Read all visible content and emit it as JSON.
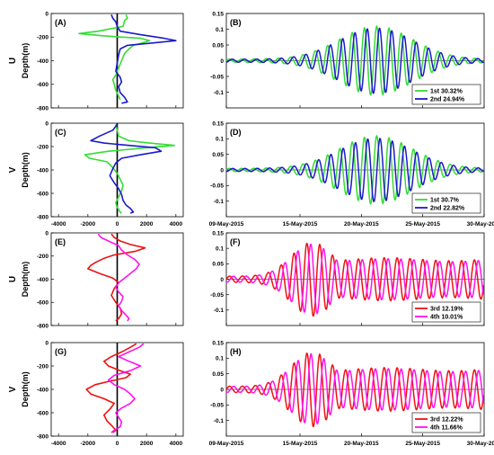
{
  "dates": [
    "09-May-2015",
    "15-May-2015",
    "20-May-2015",
    "25-May-2015",
    "30-May-2015"
  ],
  "colors": {
    "mode1": "#33dd33",
    "mode2": "#1a1acc",
    "mode3": "#ee1111",
    "mode4": "#ff11ee",
    "zero": "#000000"
  },
  "profile_x_ticks": [
    "-4000",
    "-2000",
    "0",
    "2000",
    "4000"
  ],
  "ts_y_ticks": [
    "0.15",
    "0.1",
    "0.05",
    "0",
    "-0.05",
    "-0.1"
  ],
  "chart_data": [
    {
      "type": "line",
      "panel": "(A)",
      "component": "U",
      "ylabel": "Depth(m)",
      "xlim": [
        -4500,
        4500
      ],
      "ylim": [
        -800,
        0
      ],
      "y_ticks": [
        "0",
        "-200",
        "-400",
        "-600",
        "-800"
      ],
      "series": [
        {
          "mode": "1st",
          "color": "#33dd33",
          "x": [
            600,
            700,
            500,
            400,
            -1300,
            -2600,
            -900,
            1600,
            2200,
            1700,
            1100,
            800,
            500,
            300,
            100,
            -100,
            -300,
            -200,
            -100,
            100,
            200
          ],
          "y": [
            -10,
            -40,
            -60,
            -110,
            -150,
            -170,
            -190,
            -210,
            -230,
            -250,
            -270,
            -300,
            -340,
            -400,
            -460,
            -520,
            -560,
            -600,
            -650,
            -700,
            -730
          ]
        },
        {
          "mode": "2nd",
          "color": "#1a1acc",
          "x": [
            -400,
            -300,
            -100,
            0,
            200,
            1600,
            3200,
            4000,
            2400,
            700,
            200,
            100,
            0,
            -100,
            200,
            300,
            100,
            200,
            500,
            700,
            300
          ],
          "y": [
            -10,
            -40,
            -70,
            -110,
            -150,
            -180,
            -210,
            -230,
            -250,
            -270,
            -300,
            -350,
            -420,
            -490,
            -540,
            -580,
            -620,
            -670,
            -710,
            -750,
            -760
          ]
        }
      ]
    },
    {
      "type": "line",
      "panel": "(B)",
      "component": "U",
      "x_start": "09-May-2015",
      "x_end": "30-May-2015",
      "ylim": [
        -0.15,
        0.15
      ],
      "legend": "bottom-right",
      "series": [
        {
          "mode": "1st",
          "name": "1st 30.32%",
          "color": "#33dd33",
          "period_days": 1.0,
          "phase": 0.0,
          "amp_scale": 1.0
        },
        {
          "mode": "2nd",
          "name": "2nd 24.94%",
          "color": "#1a1acc",
          "period_days": 1.0,
          "phase": 0.23,
          "amp_scale": 0.95
        }
      ]
    },
    {
      "type": "line",
      "panel": "(C)",
      "component": "V",
      "ylabel": "Depth(m)",
      "xlim": [
        -4500,
        4500
      ],
      "ylim": [
        -800,
        0
      ],
      "y_ticks": [
        "0",
        "-200",
        "-400",
        "-600",
        "-800"
      ],
      "series": [
        {
          "mode": "1st",
          "color": "#33dd33",
          "x": [
            -100,
            0,
            100,
            800,
            2200,
            3900,
            2000,
            -600,
            -2200,
            -1900,
            -700,
            -300,
            0,
            200,
            400,
            300,
            100,
            -100,
            0,
            200,
            300
          ],
          "y": [
            -10,
            -60,
            -110,
            -150,
            -170,
            -190,
            -210,
            -240,
            -270,
            -300,
            -330,
            -380,
            -430,
            -480,
            -530,
            -580,
            -630,
            -680,
            -720,
            -760,
            -770
          ]
        },
        {
          "mode": "2nd",
          "color": "#1a1acc",
          "x": [
            0,
            -300,
            -1200,
            -1800,
            -900,
            800,
            2600,
            3000,
            1600,
            300,
            -100,
            -300,
            -500,
            -200,
            100,
            300,
            400,
            600,
            900,
            1100,
            900
          ],
          "y": [
            -10,
            -60,
            -110,
            -150,
            -170,
            -190,
            -210,
            -240,
            -270,
            -300,
            -340,
            -390,
            -450,
            -510,
            -560,
            -610,
            -660,
            -700,
            -730,
            -760,
            -770
          ]
        }
      ]
    },
    {
      "type": "line",
      "panel": "(D)",
      "component": "V",
      "x_start": "09-May-2015",
      "x_end": "30-May-2015",
      "ylim": [
        -0.15,
        0.15
      ],
      "legend": "bottom-right",
      "series": [
        {
          "mode": "1st",
          "name": "1st 30.7%",
          "color": "#33dd33",
          "period_days": 1.0,
          "phase": 0.0,
          "amp_scale": 1.0
        },
        {
          "mode": "2nd",
          "name": "2nd 22.82%",
          "color": "#1a1acc",
          "period_days": 1.0,
          "phase": 0.27,
          "amp_scale": 0.93
        }
      ]
    },
    {
      "type": "line",
      "panel": "(E)",
      "component": "U",
      "ylabel": "Depth(m)",
      "xlim": [
        -4500,
        4500
      ],
      "ylim": [
        -800,
        0
      ],
      "y_ticks": [
        "0",
        "-200",
        "-400",
        "-600",
        "-800"
      ],
      "series": [
        {
          "mode": "3rd",
          "color": "#ee1111",
          "x": [
            -400,
            -200,
            200,
            900,
            1900,
            1200,
            -200,
            -900,
            -1400,
            -1800,
            -2000,
            -1200,
            -300,
            100,
            -200,
            -400,
            -100,
            200,
            300,
            100,
            -100
          ],
          "y": [
            -10,
            -40,
            -70,
            -100,
            -130,
            -160,
            -190,
            -220,
            -250,
            -280,
            -310,
            -350,
            -390,
            -430,
            -480,
            -540,
            -600,
            -650,
            -700,
            -740,
            -760
          ]
        },
        {
          "mode": "4th",
          "color": "#ff11ee",
          "x": [
            -1300,
            -1100,
            -600,
            100,
            300,
            700,
            1200,
            1500,
            1300,
            900,
            500,
            100,
            -100,
            100,
            400,
            300,
            100,
            300,
            600,
            800,
            700
          ],
          "y": [
            -10,
            -40,
            -70,
            -110,
            -150,
            -190,
            -230,
            -270,
            -310,
            -350,
            -390,
            -430,
            -470,
            -510,
            -550,
            -590,
            -630,
            -670,
            -710,
            -740,
            -760
          ]
        }
      ]
    },
    {
      "type": "line",
      "panel": "(F)",
      "component": "U",
      "x_start": "09-May-2015",
      "x_end": "30-May-2015",
      "ylim": [
        -0.15,
        0.15
      ],
      "legend": "bottom-right",
      "series": [
        {
          "mode": "3rd",
          "name": "3rd 12.19%",
          "color": "#ee1111",
          "period_days": 1.05,
          "phase": 0.0,
          "amp_scale": 1.0
        },
        {
          "mode": "4th",
          "name": "4th 10.01%",
          "color": "#ff11ee",
          "period_days": 1.05,
          "phase": 0.3,
          "amp_scale": 0.95
        }
      ]
    },
    {
      "type": "line",
      "panel": "(G)",
      "component": "V",
      "ylabel": "Depth(m)",
      "xlim": [
        -4500,
        4500
      ],
      "ylim": [
        -800,
        0
      ],
      "y_ticks": [
        "0",
        "-200",
        "-400",
        "-600",
        "-800"
      ],
      "series": [
        {
          "mode": "3rd",
          "color": "#ee1111",
          "x": [
            1300,
            900,
            300,
            -400,
            -900,
            -600,
            200,
            900,
            600,
            -500,
            -1500,
            -2100,
            -1800,
            -900,
            -200,
            -500,
            -900,
            -700,
            -300,
            -100,
            -300
          ],
          "y": [
            -10,
            -40,
            -80,
            -120,
            -160,
            -200,
            -240,
            -270,
            -300,
            -330,
            -360,
            -400,
            -440,
            -480,
            -520,
            -570,
            -620,
            -670,
            -720,
            -750,
            -770
          ]
        },
        {
          "mode": "4th",
          "color": "#ff11ee",
          "x": [
            1800,
            1500,
            800,
            100,
            800,
            1600,
            900,
            -200,
            -600,
            -200,
            500,
            900,
            1200,
            900,
            300,
            -100,
            100,
            300,
            200,
            -200,
            -400
          ],
          "y": [
            -10,
            -40,
            -80,
            -120,
            -160,
            -200,
            -240,
            -280,
            -320,
            -360,
            -400,
            -440,
            -480,
            -520,
            -560,
            -600,
            -640,
            -680,
            -720,
            -750,
            -770
          ]
        }
      ]
    },
    {
      "type": "line",
      "panel": "(H)",
      "component": "V",
      "x_start": "09-May-2015",
      "x_end": "30-May-2015",
      "ylim": [
        -0.15,
        0.15
      ],
      "legend": "bottom-right",
      "series": [
        {
          "mode": "3rd",
          "name": "3rd 12.22%",
          "color": "#ee1111",
          "period_days": 1.05,
          "phase": 0.0,
          "amp_scale": 1.0
        },
        {
          "mode": "4th",
          "name": "4th 11.66%",
          "color": "#ff11ee",
          "period_days": 1.05,
          "phase": 0.32,
          "amp_scale": 0.95
        }
      ]
    }
  ]
}
